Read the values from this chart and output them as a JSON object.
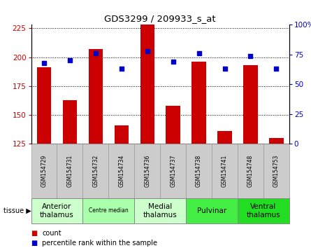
{
  "title": "GDS3299 / 209933_s_at",
  "samples": [
    "GSM154729",
    "GSM154731",
    "GSM154732",
    "GSM154734",
    "GSM154736",
    "GSM154737",
    "GSM154738",
    "GSM154741",
    "GSM154748",
    "GSM154753"
  ],
  "counts": [
    191,
    163,
    207,
    141,
    228,
    158,
    196,
    136,
    193,
    130
  ],
  "percentile_ranks": [
    68,
    70,
    76,
    63,
    78,
    69,
    76,
    63,
    74,
    63
  ],
  "ylim_left": [
    125,
    228
  ],
  "ylim_right": [
    0,
    100
  ],
  "yticks_left": [
    125,
    150,
    175,
    200,
    225
  ],
  "yticks_right": [
    0,
    25,
    50,
    75,
    100
  ],
  "bar_color": "#cc0000",
  "dot_color": "#0000cc",
  "grid_color": "#000000",
  "tissue_groups": [
    {
      "label": "Anterior\nthalamus",
      "start": 0,
      "end": 1,
      "color": "#ccffcc"
    },
    {
      "label": "Centre median",
      "start": 2,
      "end": 3,
      "color": "#aaffaa"
    },
    {
      "label": "Medial\nthalamus",
      "start": 4,
      "end": 5,
      "color": "#ccffcc"
    },
    {
      "label": "Pulvinar",
      "start": 6,
      "end": 7,
      "color": "#44ee44"
    },
    {
      "label": "Ventral\nthalamus",
      "start": 8,
      "end": 9,
      "color": "#22dd22"
    }
  ],
  "xlabel_tissue": "tissue",
  "legend_count": "count",
  "legend_pct": "percentile rank within the sample",
  "bar_width": 0.55,
  "sample_bg_color": "#cccccc",
  "sample_border_color": "#999999"
}
